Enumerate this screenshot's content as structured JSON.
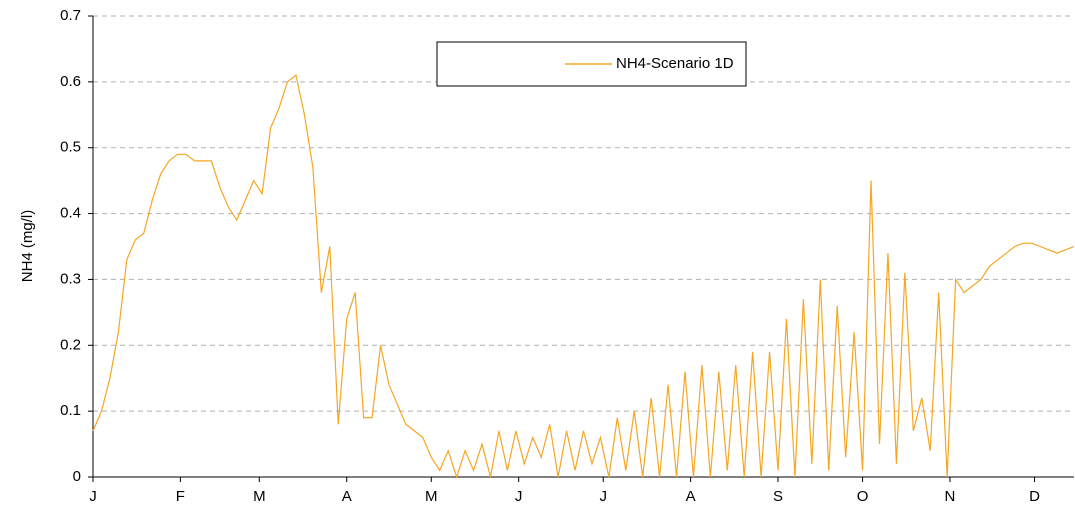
{
  "chart_data": {
    "type": "line",
    "y_label": "NH4 (mg/l)",
    "x": [
      0,
      3,
      6,
      9,
      12,
      15,
      18,
      21,
      24,
      27,
      30,
      33,
      36,
      39,
      42,
      45,
      48,
      51,
      54,
      57,
      60,
      63,
      66,
      69,
      72,
      75,
      78,
      81,
      84,
      87,
      90,
      93,
      96,
      99,
      102,
      105,
      108,
      111,
      114,
      117,
      120,
      123,
      126,
      129,
      132,
      135,
      138,
      141,
      144,
      147,
      150,
      153,
      156,
      159,
      162,
      165,
      168,
      171,
      174,
      177,
      180,
      183,
      186,
      189,
      192,
      195,
      198,
      201,
      204,
      207,
      210,
      213,
      216,
      219,
      222,
      225,
      228,
      231,
      234,
      237,
      240,
      243,
      246,
      249,
      252,
      255,
      258,
      261,
      264,
      267,
      270,
      273,
      276,
      279,
      282,
      285,
      288,
      291,
      294,
      297,
      300,
      303,
      306,
      309,
      312,
      315,
      318,
      321,
      324,
      327,
      330,
      333,
      336,
      339,
      342,
      345,
      348
    ],
    "series": [
      {
        "name": "NH4-Scenario 1D",
        "color": "#f5a623",
        "values": [
          0.07,
          0.1,
          0.15,
          0.22,
          0.33,
          0.36,
          0.37,
          0.42,
          0.46,
          0.48,
          0.49,
          0.49,
          0.48,
          0.48,
          0.48,
          0.44,
          0.41,
          0.39,
          0.42,
          0.45,
          0.43,
          0.53,
          0.56,
          0.6,
          0.61,
          0.55,
          0.47,
          0.28,
          0.35,
          0.08,
          0.24,
          0.28,
          0.09,
          0.09,
          0.2,
          0.14,
          0.11,
          0.08,
          0.07,
          0.06,
          0.03,
          0.01,
          0.04,
          0.0,
          0.04,
          0.01,
          0.05,
          0.0,
          0.07,
          0.01,
          0.07,
          0.02,
          0.06,
          0.03,
          0.08,
          0.0,
          0.07,
          0.01,
          0.07,
          0.02,
          0.06,
          0.0,
          0.09,
          0.01,
          0.1,
          0.0,
          0.12,
          0.0,
          0.14,
          0.0,
          0.16,
          0.0,
          0.17,
          0.0,
          0.16,
          0.01,
          0.17,
          0.0,
          0.19,
          0.0,
          0.19,
          0.01,
          0.24,
          0.0,
          0.27,
          0.02,
          0.3,
          0.01,
          0.26,
          0.03,
          0.22,
          0.01,
          0.45,
          0.05,
          0.34,
          0.02,
          0.31,
          0.07,
          0.12,
          0.04,
          0.28,
          0.0,
          0.3,
          0.28,
          0.29,
          0.3,
          0.32,
          0.33,
          0.34,
          0.35,
          0.355,
          0.355,
          0.35,
          0.345,
          0.34,
          0.345,
          0.35
        ]
      }
    ],
    "xlim": [
      0,
      348
    ],
    "xticks": [
      {
        "value": 0,
        "label": "J"
      },
      {
        "value": 31,
        "label": "F"
      },
      {
        "value": 59,
        "label": "M"
      },
      {
        "value": 90,
        "label": "A"
      },
      {
        "value": 120,
        "label": "M"
      },
      {
        "value": 151,
        "label": "J"
      },
      {
        "value": 181,
        "label": "J"
      },
      {
        "value": 212,
        "label": "A"
      },
      {
        "value": 243,
        "label": "S"
      },
      {
        "value": 273,
        "label": "O"
      },
      {
        "value": 304,
        "label": "N"
      },
      {
        "value": 334,
        "label": "D"
      }
    ],
    "ylim": [
      0,
      0.7
    ],
    "yticks": [
      0,
      0.1,
      0.2,
      0.3,
      0.4,
      0.5,
      0.6,
      0.7
    ],
    "grid": true,
    "legend": "top"
  }
}
